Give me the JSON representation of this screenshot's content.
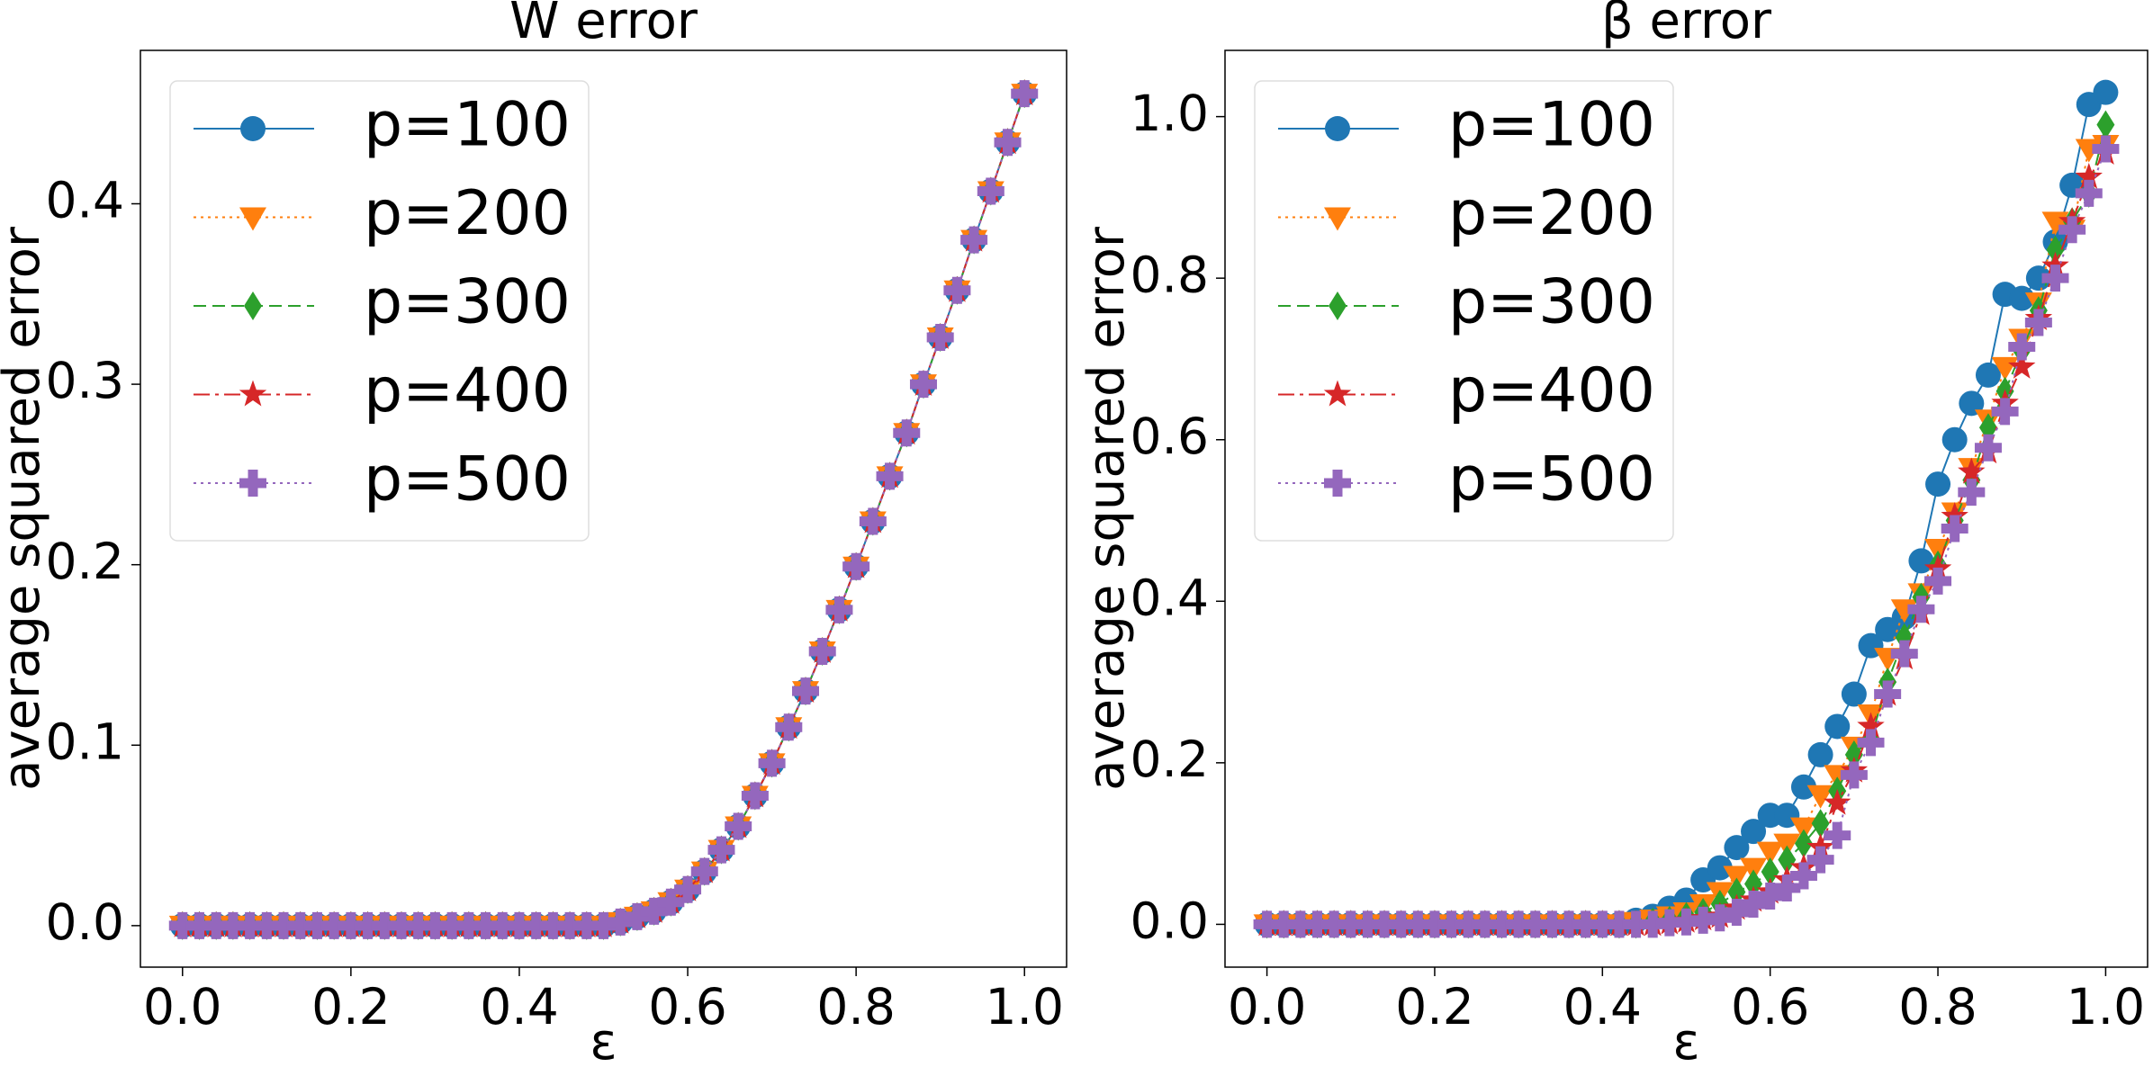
{
  "chart_data": [
    {
      "type": "line",
      "title": "W error",
      "x_label": "ε",
      "y_label": "average squared error",
      "x": [
        0,
        0.02,
        0.04,
        0.06,
        0.08,
        0.1,
        0.12,
        0.14,
        0.16,
        0.18,
        0.2,
        0.22,
        0.24,
        0.26,
        0.28,
        0.3,
        0.32,
        0.34,
        0.36,
        0.38,
        0.4,
        0.42,
        0.44,
        0.46,
        0.48,
        0.5,
        0.52,
        0.54,
        0.56,
        0.58,
        0.6,
        0.62,
        0.64,
        0.66,
        0.68,
        0.7,
        0.72,
        0.74,
        0.76,
        0.78,
        0.8,
        0.82,
        0.84,
        0.86,
        0.88,
        0.9,
        0.92,
        0.94,
        0.96,
        0.98,
        1
      ],
      "xlim": [
        -0.05,
        1.05
      ],
      "ylim": [
        -0.023,
        0.485
      ],
      "xticks": [
        {
          "value": 0,
          "label": "0.0"
        },
        0.2,
        0.4,
        0.6,
        0.8,
        {
          "value": 1,
          "label": "1.0"
        }
      ],
      "yticks": [
        {
          "value": 0,
          "label": "0.0"
        },
        0.1,
        0.2,
        0.3,
        0.4
      ],
      "legend": "upper left",
      "series": [
        {
          "name": "p=100",
          "color": "#1f77b4",
          "marker": "o",
          "linestyle": "solid",
          "values": [
            0,
            0,
            0,
            0,
            0,
            0,
            0,
            0,
            0,
            0,
            0,
            0,
            0,
            0,
            0,
            0,
            0,
            0,
            0,
            0,
            0,
            0,
            0,
            0,
            0,
            0,
            0.002,
            0.005,
            0.008,
            0.013,
            0.02,
            0.03,
            0.042,
            0.055,
            0.072,
            0.09,
            0.11,
            0.13,
            0.152,
            0.175,
            0.199,
            0.224,
            0.249,
            0.273,
            0.3,
            0.326,
            0.352,
            0.38,
            0.407,
            0.434,
            0.461
          ]
        },
        {
          "name": "p=200",
          "color": "#ff7f0e",
          "marker": "v",
          "linestyle": "dotted",
          "values": [
            0,
            0,
            0,
            0,
            0,
            0,
            0,
            0,
            0,
            0,
            0,
            0,
            0,
            0,
            0,
            0,
            0,
            0,
            0,
            0,
            0,
            0,
            0,
            0,
            0,
            0,
            0.002,
            0.005,
            0.008,
            0.013,
            0.02,
            0.03,
            0.042,
            0.055,
            0.072,
            0.09,
            0.11,
            0.13,
            0.152,
            0.175,
            0.199,
            0.224,
            0.249,
            0.273,
            0.3,
            0.326,
            0.352,
            0.38,
            0.407,
            0.434,
            0.461
          ]
        },
        {
          "name": "p=300",
          "color": "#2ca02c",
          "marker": "d",
          "linestyle": "dashed",
          "values": [
            0,
            0,
            0,
            0,
            0,
            0,
            0,
            0,
            0,
            0,
            0,
            0,
            0,
            0,
            0,
            0,
            0,
            0,
            0,
            0,
            0,
            0,
            0,
            0,
            0,
            0,
            0.002,
            0.005,
            0.008,
            0.013,
            0.02,
            0.03,
            0.042,
            0.055,
            0.072,
            0.09,
            0.11,
            0.13,
            0.152,
            0.175,
            0.199,
            0.224,
            0.249,
            0.273,
            0.3,
            0.326,
            0.352,
            0.38,
            0.407,
            0.434,
            0.461
          ]
        },
        {
          "name": "p=400",
          "color": "#d62728",
          "marker": "*",
          "linestyle": "dashdot",
          "values": [
            0,
            0,
            0,
            0,
            0,
            0,
            0,
            0,
            0,
            0,
            0,
            0,
            0,
            0,
            0,
            0,
            0,
            0,
            0,
            0,
            0,
            0,
            0,
            0,
            0,
            0,
            0.002,
            0.005,
            0.008,
            0.013,
            0.02,
            0.03,
            0.042,
            0.055,
            0.072,
            0.09,
            0.11,
            0.13,
            0.152,
            0.175,
            0.199,
            0.224,
            0.249,
            0.273,
            0.3,
            0.326,
            0.352,
            0.38,
            0.407,
            0.434,
            0.461
          ]
        },
        {
          "name": "p=500",
          "color": "#9467bd",
          "marker": "P",
          "linestyle": "dotted",
          "values": [
            0,
            0,
            0,
            0,
            0,
            0,
            0,
            0,
            0,
            0,
            0,
            0,
            0,
            0,
            0,
            0,
            0,
            0,
            0,
            0,
            0,
            0,
            0,
            0,
            0,
            0,
            0.002,
            0.005,
            0.008,
            0.013,
            0.02,
            0.03,
            0.042,
            0.055,
            0.072,
            0.09,
            0.11,
            0.13,
            0.152,
            0.175,
            0.199,
            0.224,
            0.249,
            0.273,
            0.3,
            0.326,
            0.352,
            0.38,
            0.407,
            0.434,
            0.461
          ]
        }
      ]
    },
    {
      "type": "line",
      "title": "β error",
      "x_label": "ε",
      "y_label": "average squared error",
      "x": [
        0,
        0.02,
        0.04,
        0.06,
        0.08,
        0.1,
        0.12,
        0.14,
        0.16,
        0.18,
        0.2,
        0.22,
        0.24,
        0.26,
        0.28,
        0.3,
        0.32,
        0.34,
        0.36,
        0.38,
        0.4,
        0.42,
        0.44,
        0.46,
        0.48,
        0.5,
        0.52,
        0.54,
        0.56,
        0.58,
        0.6,
        0.62,
        0.64,
        0.66,
        0.68,
        0.7,
        0.72,
        0.74,
        0.76,
        0.78,
        0.8,
        0.82,
        0.84,
        0.86,
        0.88,
        0.9,
        0.92,
        0.94,
        0.96,
        0.98,
        1
      ],
      "xlim": [
        -0.05,
        1.05
      ],
      "ylim": [
        -0.053,
        1.082
      ],
      "xticks": [
        {
          "value": 0,
          "label": "0.0"
        },
        0.2,
        0.4,
        0.6,
        0.8,
        {
          "value": 1,
          "label": "1.0"
        }
      ],
      "yticks": [
        {
          "value": 0,
          "label": "0.0"
        },
        0.2,
        0.4,
        0.6,
        0.8,
        {
          "value": 1,
          "label": "1.0"
        }
      ],
      "legend": "upper left",
      "series": [
        {
          "name": "p=100",
          "color": "#1f77b4",
          "marker": "o",
          "linestyle": "solid",
          "values": [
            0,
            0,
            0,
            0,
            0,
            0,
            0,
            0,
            0,
            0,
            0,
            0,
            0,
            0,
            0,
            0,
            0,
            0,
            0,
            0,
            0,
            0,
            0.005,
            0.01,
            0.02,
            0.03,
            0.055,
            0.07,
            0.095,
            0.115,
            0.135,
            0.135,
            0.17,
            0.21,
            0.245,
            0.285,
            0.345,
            0.365,
            0.38,
            0.45,
            0.545,
            0.6,
            0.645,
            0.68,
            0.78,
            0.775,
            0.8,
            0.845,
            0.915,
            1.015,
            1.03
          ]
        },
        {
          "name": "p=200",
          "color": "#ff7f0e",
          "marker": "v",
          "linestyle": "dotted",
          "values": [
            0,
            0,
            0,
            0,
            0,
            0,
            0,
            0,
            0,
            0,
            0,
            0,
            0,
            0,
            0,
            0,
            0,
            0,
            0,
            0,
            0,
            0,
            0.003,
            0.006,
            0.01,
            0.015,
            0.025,
            0.04,
            0.06,
            0.07,
            0.09,
            0.1,
            0.12,
            0.16,
            0.185,
            0.22,
            0.26,
            0.33,
            0.39,
            0.41,
            0.465,
            0.51,
            0.565,
            0.625,
            0.69,
            0.725,
            0.77,
            0.87,
            0.86,
            0.96,
            0.965
          ]
        },
        {
          "name": "p=300",
          "color": "#2ca02c",
          "marker": "d",
          "linestyle": "dashed",
          "values": [
            0,
            0,
            0,
            0,
            0,
            0,
            0,
            0,
            0,
            0,
            0,
            0,
            0,
            0,
            0,
            0,
            0,
            0,
            0,
            0,
            0,
            0,
            0,
            0.003,
            0.005,
            0.01,
            0.015,
            0.025,
            0.04,
            0.05,
            0.065,
            0.08,
            0.1,
            0.125,
            0.165,
            0.21,
            0.23,
            0.3,
            0.355,
            0.405,
            0.445,
            0.5,
            0.55,
            0.615,
            0.66,
            0.71,
            0.76,
            0.835,
            0.87,
            0.905,
            0.99
          ]
        },
        {
          "name": "p=400",
          "color": "#d62728",
          "marker": "*",
          "linestyle": "dashdot",
          "values": [
            0,
            0,
            0,
            0,
            0,
            0,
            0,
            0,
            0,
            0,
            0,
            0,
            0,
            0,
            0,
            0,
            0,
            0,
            0,
            0,
            0,
            0,
            0,
            0,
            0.002,
            0.004,
            0.007,
            0.01,
            0.02,
            0.03,
            0.04,
            0.055,
            0.07,
            0.095,
            0.15,
            0.19,
            0.245,
            0.285,
            0.33,
            0.385,
            0.44,
            0.505,
            0.56,
            0.585,
            0.645,
            0.69,
            0.75,
            0.815,
            0.87,
            0.925,
            0.955
          ]
        },
        {
          "name": "p=500",
          "color": "#9467bd",
          "marker": "P",
          "linestyle": "dotted",
          "values": [
            0,
            0,
            0,
            0,
            0,
            0,
            0,
            0,
            0,
            0,
            0,
            0,
            0,
            0,
            0,
            0,
            0,
            0,
            0,
            0,
            0,
            0,
            0,
            0,
            0.002,
            0.003,
            0.005,
            0.008,
            0.015,
            0.025,
            0.035,
            0.045,
            0.06,
            0.08,
            0.11,
            0.185,
            0.225,
            0.285,
            0.335,
            0.39,
            0.425,
            0.49,
            0.535,
            0.59,
            0.635,
            0.715,
            0.745,
            0.8,
            0.86,
            0.905,
            0.96
          ]
        }
      ]
    }
  ]
}
